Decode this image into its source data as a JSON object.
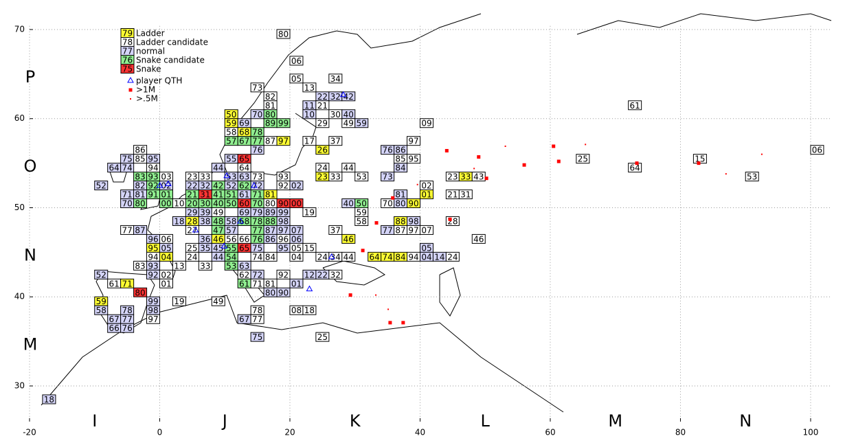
{
  "chart_data": {
    "type": "gridmap",
    "xlim": [
      -20,
      103
    ],
    "ylim": [
      26,
      70.4
    ],
    "xticks": [
      -20,
      0,
      20,
      40,
      60,
      80,
      100
    ],
    "yticks": [
      30,
      40,
      50,
      60,
      70
    ],
    "grid": true,
    "x_fields": [
      "I",
      "J",
      "K",
      "L",
      "M",
      "N"
    ],
    "y_fields": [
      "P",
      "O",
      "N",
      "M"
    ],
    "kinds": {
      "L": {
        "sample": "79",
        "name": "Ladder",
        "color": "#ffff33"
      },
      "C": {
        "sample": "78",
        "name": "Ladder candidate",
        "color": "#ffffff"
      },
      "N": {
        "sample": "77",
        "name": "normal",
        "color": "#d4d4f8"
      },
      "S": {
        "sample": "76",
        "name": "Snake candidate",
        "color": "#90ee90"
      },
      "R": {
        "sample": "75",
        "name": "Snake",
        "color": "#ff3333"
      }
    },
    "marker_legend": {
      "qth": "player QTH",
      "big": ">1M",
      "small": ">.5M"
    },
    "squares": [
      [
        19,
        69.5,
        "80",
        "C"
      ],
      [
        21,
        66.5,
        "06",
        "C"
      ],
      [
        21,
        64.5,
        "05",
        "C"
      ],
      [
        27,
        64.5,
        "34",
        "C"
      ],
      [
        15,
        63.5,
        "73",
        "C"
      ],
      [
        23,
        63.5,
        "13",
        "C"
      ],
      [
        17,
        62.5,
        "82",
        "C"
      ],
      [
        25,
        62.5,
        "22",
        "N"
      ],
      [
        27,
        62.5,
        "32",
        "N"
      ],
      [
        29,
        62.5,
        "42",
        "N"
      ],
      [
        17,
        61.5,
        "81",
        "C"
      ],
      [
        23,
        61.5,
        "11",
        "N"
      ],
      [
        25,
        61.5,
        "21",
        "C"
      ],
      [
        11,
        60.5,
        "50",
        "L"
      ],
      [
        15,
        60.5,
        "70",
        "N"
      ],
      [
        17,
        60.5,
        "80",
        "S"
      ],
      [
        23,
        60.5,
        "10",
        "N"
      ],
      [
        27,
        60.5,
        "30",
        "C"
      ],
      [
        29,
        60.5,
        "40",
        "N"
      ],
      [
        11,
        59.5,
        "59",
        "L"
      ],
      [
        13,
        59.5,
        "69",
        "N"
      ],
      [
        17,
        59.5,
        "89",
        "S"
      ],
      [
        19,
        59.5,
        "99",
        "S"
      ],
      [
        25,
        59.5,
        "29",
        "C"
      ],
      [
        29,
        59.5,
        "49",
        "C"
      ],
      [
        31,
        59.5,
        "59",
        "N"
      ],
      [
        41,
        59.5,
        "09",
        "C"
      ],
      [
        11,
        58.5,
        "58",
        "C"
      ],
      [
        13,
        58.5,
        "68",
        "L"
      ],
      [
        15,
        58.5,
        "78",
        "S"
      ],
      [
        11,
        57.5,
        "57",
        "S"
      ],
      [
        13,
        57.5,
        "67",
        "S"
      ],
      [
        15,
        57.5,
        "77",
        "S"
      ],
      [
        17,
        57.5,
        "87",
        "C"
      ],
      [
        19,
        57.5,
        "97",
        "L"
      ],
      [
        23,
        57.5,
        "17",
        "C"
      ],
      [
        27,
        57.5,
        "37",
        "C"
      ],
      [
        39,
        57.5,
        "97",
        "C"
      ],
      [
        -3,
        56.5,
        "86",
        "C"
      ],
      [
        15,
        56.5,
        "76",
        "N"
      ],
      [
        25,
        56.5,
        "26",
        "L"
      ],
      [
        35,
        56.5,
        "76",
        "N"
      ],
      [
        37,
        56.5,
        "86",
        "N"
      ],
      [
        101,
        56.5,
        "06",
        "C"
      ],
      [
        -5,
        55.5,
        "75",
        "N"
      ],
      [
        -3,
        55.5,
        "85",
        "C"
      ],
      [
        -1,
        55.5,
        "95",
        "N"
      ],
      [
        11,
        55.5,
        "55",
        "N"
      ],
      [
        13,
        55.5,
        "65",
        "R"
      ],
      [
        37,
        55.5,
        "85",
        "C"
      ],
      [
        39,
        55.5,
        "95",
        "C"
      ],
      [
        65,
        55.5,
        "25",
        "C"
      ],
      [
        83,
        55.5,
        "15",
        "C"
      ],
      [
        -7,
        54.5,
        "64",
        "N"
      ],
      [
        -5,
        54.5,
        "74",
        "N"
      ],
      [
        -1,
        54.5,
        "94",
        "C"
      ],
      [
        9,
        54.5,
        "44",
        "N"
      ],
      [
        13,
        54.5,
        "64",
        "C"
      ],
      [
        25,
        54.5,
        "24",
        "C"
      ],
      [
        29,
        54.5,
        "44",
        "C"
      ],
      [
        37,
        54.5,
        "84",
        "N"
      ],
      [
        73,
        54.5,
        "64",
        "C"
      ],
      [
        -3,
        53.5,
        "83",
        "S"
      ],
      [
        -1,
        53.5,
        "93",
        "S"
      ],
      [
        1,
        53.5,
        "03",
        "C"
      ],
      [
        5,
        53.5,
        "23",
        "C"
      ],
      [
        7,
        53.5,
        "33",
        "C"
      ],
      [
        11,
        53.5,
        "53",
        "N"
      ],
      [
        13,
        53.5,
        "63",
        "N"
      ],
      [
        15,
        53.5,
        "73",
        "C"
      ],
      [
        19,
        53.5,
        "93",
        "C"
      ],
      [
        25,
        53.5,
        "23",
        "L"
      ],
      [
        27,
        53.5,
        "33",
        "C"
      ],
      [
        31,
        53.5,
        "53",
        "C"
      ],
      [
        35,
        53.5,
        "73",
        "N"
      ],
      [
        45,
        53.5,
        "23",
        "C"
      ],
      [
        47,
        53.5,
        "33",
        "L"
      ],
      [
        49,
        53.5,
        "43",
        "C"
      ],
      [
        91,
        53.5,
        "53",
        "C"
      ],
      [
        -9,
        52.5,
        "52",
        "N"
      ],
      [
        -3,
        52.5,
        "82",
        "N"
      ],
      [
        -1,
        52.5,
        "92",
        "S"
      ],
      [
        1,
        52.5,
        "02",
        "N"
      ],
      [
        5,
        52.5,
        "22",
        "N"
      ],
      [
        7,
        52.5,
        "32",
        "N"
      ],
      [
        9,
        52.5,
        "42",
        "S"
      ],
      [
        11,
        52.5,
        "52",
        "N"
      ],
      [
        13,
        52.5,
        "62",
        "S"
      ],
      [
        15,
        52.5,
        "72",
        "N"
      ],
      [
        19,
        52.5,
        "92",
        "C"
      ],
      [
        21,
        52.5,
        "02",
        "N"
      ],
      [
        41,
        52.5,
        "02",
        "C"
      ],
      [
        -5,
        51.5,
        "71",
        "N"
      ],
      [
        -3,
        51.5,
        "81",
        "N"
      ],
      [
        -1,
        51.5,
        "91",
        "S"
      ],
      [
        1,
        51.5,
        "01",
        "S"
      ],
      [
        5,
        51.5,
        "21",
        "S"
      ],
      [
        7,
        51.5,
        "31",
        "R"
      ],
      [
        9,
        51.5,
        "41",
        "S"
      ],
      [
        11,
        51.5,
        "51",
        "S"
      ],
      [
        13,
        51.5,
        "61",
        "N"
      ],
      [
        15,
        51.5,
        "71",
        "S"
      ],
      [
        17,
        51.5,
        "81",
        "L"
      ],
      [
        37,
        51.5,
        "81",
        "N"
      ],
      [
        41,
        51.5,
        "01",
        "L"
      ],
      [
        45,
        51.5,
        "21",
        "C"
      ],
      [
        47,
        51.5,
        "31",
        "C"
      ],
      [
        -5,
        50.5,
        "70",
        "N"
      ],
      [
        -3,
        50.5,
        "80",
        "S"
      ],
      [
        1,
        50.5,
        "00",
        "S"
      ],
      [
        3,
        50.5,
        "10",
        "C"
      ],
      [
        5,
        50.5,
        "20",
        "S"
      ],
      [
        7,
        50.5,
        "30",
        "S"
      ],
      [
        9,
        50.5,
        "40",
        "S"
      ],
      [
        11,
        50.5,
        "50",
        "S"
      ],
      [
        13,
        50.5,
        "60",
        "R"
      ],
      [
        15,
        50.5,
        "70",
        "S"
      ],
      [
        17,
        50.5,
        "80",
        "C"
      ],
      [
        19,
        50.5,
        "90",
        "R"
      ],
      [
        21,
        50.5,
        "00",
        "R"
      ],
      [
        29,
        50.5,
        "40",
        "N"
      ],
      [
        31,
        50.5,
        "50",
        "S"
      ],
      [
        35,
        50.5,
        "70",
        "C"
      ],
      [
        37,
        50.5,
        "80",
        "N"
      ],
      [
        39,
        50.5,
        "90",
        "L"
      ],
      [
        5,
        49.5,
        "29",
        "N"
      ],
      [
        7,
        49.5,
        "39",
        "N"
      ],
      [
        9,
        49.5,
        "49",
        "C"
      ],
      [
        13,
        49.5,
        "69",
        "N"
      ],
      [
        15,
        49.5,
        "79",
        "N"
      ],
      [
        17,
        49.5,
        "89",
        "N"
      ],
      [
        19,
        49.5,
        "99",
        "N"
      ],
      [
        23,
        49.5,
        "19",
        "C"
      ],
      [
        31,
        49.5,
        "59",
        "C"
      ],
      [
        3,
        48.5,
        "18",
        "N"
      ],
      [
        5,
        48.5,
        "28",
        "L"
      ],
      [
        7,
        48.5,
        "38",
        "N"
      ],
      [
        9,
        48.5,
        "48",
        "S"
      ],
      [
        11,
        48.5,
        "58",
        "N"
      ],
      [
        13,
        48.5,
        "68",
        "S"
      ],
      [
        15,
        48.5,
        "78",
        "S"
      ],
      [
        17,
        48.5,
        "88",
        "S"
      ],
      [
        19,
        48.5,
        "98",
        "N"
      ],
      [
        31,
        48.5,
        "58",
        "C"
      ],
      [
        37,
        48.5,
        "88",
        "L"
      ],
      [
        39,
        48.5,
        "98",
        "N"
      ],
      [
        45,
        48.5,
        "28",
        "C"
      ],
      [
        -5,
        47.5,
        "77",
        "C"
      ],
      [
        -3,
        47.5,
        "87",
        "N"
      ],
      [
        5,
        47.5,
        "27",
        "C"
      ],
      [
        9,
        47.5,
        "47",
        "S"
      ],
      [
        11,
        47.5,
        "57",
        "N"
      ],
      [
        15,
        47.5,
        "77",
        "S"
      ],
      [
        17,
        47.5,
        "87",
        "N"
      ],
      [
        19,
        47.5,
        "97",
        "N"
      ],
      [
        21,
        47.5,
        "07",
        "N"
      ],
      [
        27,
        47.5,
        "37",
        "C"
      ],
      [
        35,
        47.5,
        "77",
        "N"
      ],
      [
        37,
        47.5,
        "87",
        "C"
      ],
      [
        39,
        47.5,
        "97",
        "C"
      ],
      [
        41,
        47.5,
        "07",
        "C"
      ],
      [
        -1,
        46.5,
        "96",
        "N"
      ],
      [
        1,
        46.5,
        "06",
        "C"
      ],
      [
        7,
        46.5,
        "36",
        "N"
      ],
      [
        9,
        46.5,
        "46",
        "L"
      ],
      [
        11,
        46.5,
        "56",
        "C"
      ],
      [
        13,
        46.5,
        "66",
        "C"
      ],
      [
        15,
        46.5,
        "76",
        "S"
      ],
      [
        17,
        46.5,
        "86",
        "N"
      ],
      [
        19,
        46.5,
        "96",
        "C"
      ],
      [
        21,
        46.5,
        "06",
        "N"
      ],
      [
        29,
        46.5,
        "46",
        "L"
      ],
      [
        49,
        46.5,
        "46",
        "C"
      ],
      [
        -1,
        45.5,
        "95",
        "L"
      ],
      [
        1,
        45.5,
        "05",
        "N"
      ],
      [
        5,
        45.5,
        "25",
        "C"
      ],
      [
        7,
        45.5,
        "35",
        "N"
      ],
      [
        9,
        45.5,
        "45",
        "N"
      ],
      [
        11,
        45.5,
        "55",
        "S"
      ],
      [
        13,
        45.5,
        "65",
        "R"
      ],
      [
        15,
        45.5,
        "75",
        "N"
      ],
      [
        19,
        45.5,
        "95",
        "N"
      ],
      [
        21,
        45.5,
        "05",
        "C"
      ],
      [
        23,
        45.5,
        "15",
        "C"
      ],
      [
        41,
        45.5,
        "05",
        "N"
      ],
      [
        -1,
        44.5,
        "94",
        "C"
      ],
      [
        1,
        44.5,
        "04",
        "L"
      ],
      [
        5,
        44.5,
        "24",
        "C"
      ],
      [
        9,
        44.5,
        "44",
        "N"
      ],
      [
        11,
        44.5,
        "54",
        "S"
      ],
      [
        15,
        44.5,
        "74",
        "C"
      ],
      [
        17,
        44.5,
        "84",
        "C"
      ],
      [
        21,
        44.5,
        "04",
        "C"
      ],
      [
        25,
        44.5,
        "24",
        "C"
      ],
      [
        27,
        44.5,
        "34",
        "C"
      ],
      [
        29,
        44.5,
        "44",
        "C"
      ],
      [
        33,
        44.5,
        "64",
        "L"
      ],
      [
        35,
        44.5,
        "74",
        "L"
      ],
      [
        37,
        44.5,
        "84",
        "L"
      ],
      [
        39,
        44.5,
        "94",
        "C"
      ],
      [
        41,
        44.5,
        "04",
        "N"
      ],
      [
        43,
        44.5,
        "14",
        "N"
      ],
      [
        45,
        44.5,
        "24",
        "C"
      ],
      [
        -3,
        43.5,
        "83",
        "C"
      ],
      [
        -1,
        43.5,
        "93",
        "N"
      ],
      [
        3,
        43.5,
        "13",
        "C"
      ],
      [
        7,
        43.5,
        "33",
        "C"
      ],
      [
        11,
        43.5,
        "53",
        "S"
      ],
      [
        13,
        43.5,
        "63",
        "N"
      ],
      [
        -9,
        42.5,
        "52",
        "N"
      ],
      [
        -1,
        42.5,
        "92",
        "N"
      ],
      [
        1,
        42.5,
        "02",
        "C"
      ],
      [
        13,
        42.5,
        "62",
        "C"
      ],
      [
        15,
        42.5,
        "72",
        "N"
      ],
      [
        19,
        42.5,
        "92",
        "C"
      ],
      [
        23,
        42.5,
        "12",
        "N"
      ],
      [
        25,
        42.5,
        "22",
        "N"
      ],
      [
        27,
        42.5,
        "32",
        "C"
      ],
      [
        -7,
        41.5,
        "61",
        "C"
      ],
      [
        -5,
        41.5,
        "71",
        "L"
      ],
      [
        1,
        41.5,
        "01",
        "C"
      ],
      [
        13,
        41.5,
        "61",
        "S"
      ],
      [
        15,
        41.5,
        "71",
        "C"
      ],
      [
        17,
        41.5,
        "81",
        "C"
      ],
      [
        21,
        41.5,
        "01",
        "N"
      ],
      [
        -3,
        40.5,
        "80",
        "R"
      ],
      [
        17,
        40.5,
        "80",
        "N"
      ],
      [
        19,
        40.5,
        "90",
        "N"
      ],
      [
        -9,
        39.5,
        "59",
        "L"
      ],
      [
        -1,
        39.5,
        "99",
        "N"
      ],
      [
        3,
        39.5,
        "19",
        "C"
      ],
      [
        9,
        39.5,
        "49",
        "C"
      ],
      [
        -9,
        38.5,
        "58",
        "N"
      ],
      [
        -5,
        38.5,
        "78",
        "N"
      ],
      [
        -1,
        38.5,
        "98",
        "N"
      ],
      [
        15,
        38.5,
        "78",
        "C"
      ],
      [
        21,
        38.5,
        "08",
        "C"
      ],
      [
        23,
        38.5,
        "18",
        "C"
      ],
      [
        -7,
        37.5,
        "67",
        "N"
      ],
      [
        -5,
        37.5,
        "77",
        "N"
      ],
      [
        -1,
        37.5,
        "97",
        "C"
      ],
      [
        13,
        37.5,
        "67",
        "N"
      ],
      [
        15,
        37.5,
        "77",
        "C"
      ],
      [
        -7,
        36.5,
        "66",
        "N"
      ],
      [
        -5,
        36.5,
        "76",
        "N"
      ],
      [
        25,
        35.5,
        "25",
        "C"
      ],
      [
        15,
        35.5,
        "75",
        "N"
      ],
      [
        -17,
        28.5,
        "18",
        "N"
      ],
      [
        73,
        61.5,
        "61",
        "C"
      ]
    ],
    "big_points": [
      [
        44.1,
        56.4
      ],
      [
        49.0,
        55.7
      ],
      [
        56.0,
        54.8
      ],
      [
        60.5,
        56.9
      ],
      [
        61.3,
        55.2
      ],
      [
        82.8,
        55.0
      ],
      [
        73.3,
        55.0
      ],
      [
        50.2,
        53.3
      ],
      [
        35.8,
        51.1
      ],
      [
        33.3,
        48.3
      ],
      [
        44.6,
        48.7
      ],
      [
        31.2,
        45.2
      ],
      [
        35.4,
        37.1
      ],
      [
        37.4,
        37.1
      ],
      [
        29.3,
        40.2
      ]
    ],
    "small_points": [
      [
        53.1,
        56.9
      ],
      [
        65.4,
        57.1
      ],
      [
        87.0,
        53.8
      ],
      [
        92.5,
        56.0
      ],
      [
        48.3,
        54.4
      ],
      [
        39.6,
        52.6
      ],
      [
        33.2,
        40.2
      ],
      [
        35.1,
        38.6
      ]
    ],
    "qth_points": [
      [
        0,
        52.5
      ],
      [
        1.3,
        52.7
      ],
      [
        10.3,
        53.6
      ],
      [
        14.5,
        52.5
      ],
      [
        5.5,
        47.5
      ],
      [
        12.4,
        48.5
      ],
      [
        9.9,
        45.7
      ],
      [
        28.2,
        62.7
      ],
      [
        23,
        40.9
      ],
      [
        26.4,
        44.5
      ]
    ]
  }
}
